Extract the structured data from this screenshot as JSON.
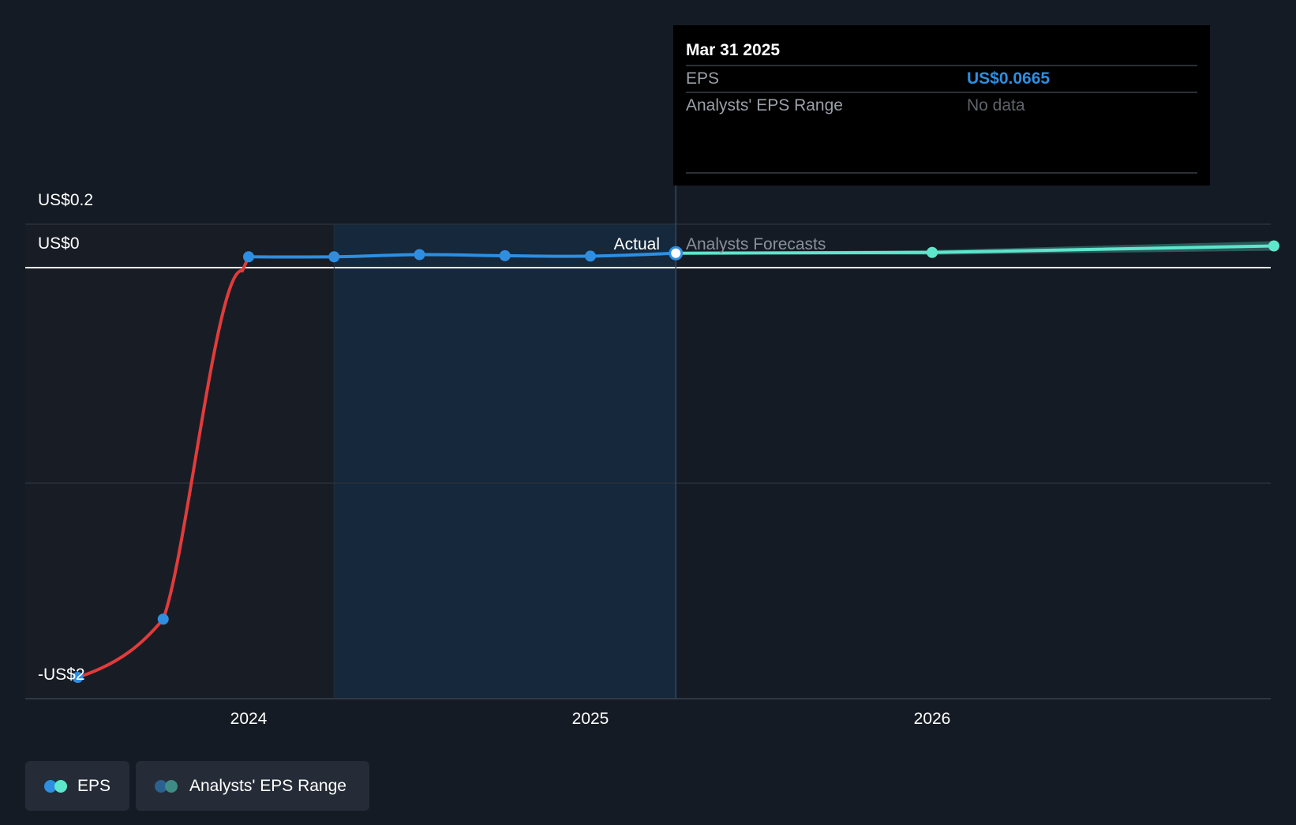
{
  "colors": {
    "background": "#151b24",
    "past_eps_line": "#2f8ee0",
    "negative_eps_line": "#e23b3b",
    "forecast_line": "#5ee6cc",
    "forecast_band": "#3f8c86",
    "past_period_shade": "#15283c",
    "gridline": "#2a313b",
    "zero_line": "#ffffff",
    "tooltip_bg": "#000000",
    "tooltip_value": "#2f8ee0",
    "muted_text": "#8a8f98"
  },
  "tooltip": {
    "date": "Mar 31 2025",
    "rows": [
      {
        "label": "EPS",
        "value": "US$0.0665"
      },
      {
        "label": "Analysts' EPS Range",
        "value": "No data"
      }
    ]
  },
  "labels": {
    "actual": "Actual",
    "forecast": "Analysts Forecasts"
  },
  "legend": [
    {
      "label": "EPS",
      "icon": "eps-legend-dots",
      "colors": [
        "#2f8ee0",
        "#5ee6cc"
      ]
    },
    {
      "label": "Analysts' EPS Range",
      "icon": "range-legend-dots",
      "colors": [
        "#2b6190",
        "#3f8c86"
      ]
    }
  ],
  "chart_data": {
    "type": "line",
    "x_ticks": [
      {
        "label": "2024",
        "t": 2024.0
      },
      {
        "label": "2025",
        "t": 2025.0
      },
      {
        "label": "2026",
        "t": 2026.0
      }
    ],
    "y_ticks": [
      {
        "label": "US$0.2",
        "v": 0.2
      },
      {
        "label": "US$0",
        "v": 0
      },
      {
        "label": "-US$2",
        "v": -1.9
      }
    ],
    "xlim": [
      2023.35,
      2026.98
    ],
    "ylim": [
      -1.95,
      0.2
    ],
    "shade_range": [
      2024.25,
      2025.25
    ],
    "divider_t": 2025.25,
    "series": [
      {
        "name": "EPS",
        "segment": "actual",
        "points": [
          {
            "t": 2023.5,
            "v": -1.9
          },
          {
            "t": 2023.75,
            "v": -1.63
          },
          {
            "t": 2024.0,
            "v": 0.05
          },
          {
            "t": 2024.25,
            "v": 0.05
          },
          {
            "t": 2024.5,
            "v": 0.06
          },
          {
            "t": 2024.75,
            "v": 0.055
          },
          {
            "t": 2025.0,
            "v": 0.053
          },
          {
            "t": 2025.25,
            "v": 0.0665
          }
        ]
      },
      {
        "name": "EPS",
        "segment": "forecast",
        "points": [
          {
            "t": 2025.25,
            "v": 0.0665
          },
          {
            "t": 2026.0,
            "v": 0.07
          },
          {
            "t": 2027.0,
            "v": 0.1
          }
        ]
      }
    ]
  }
}
